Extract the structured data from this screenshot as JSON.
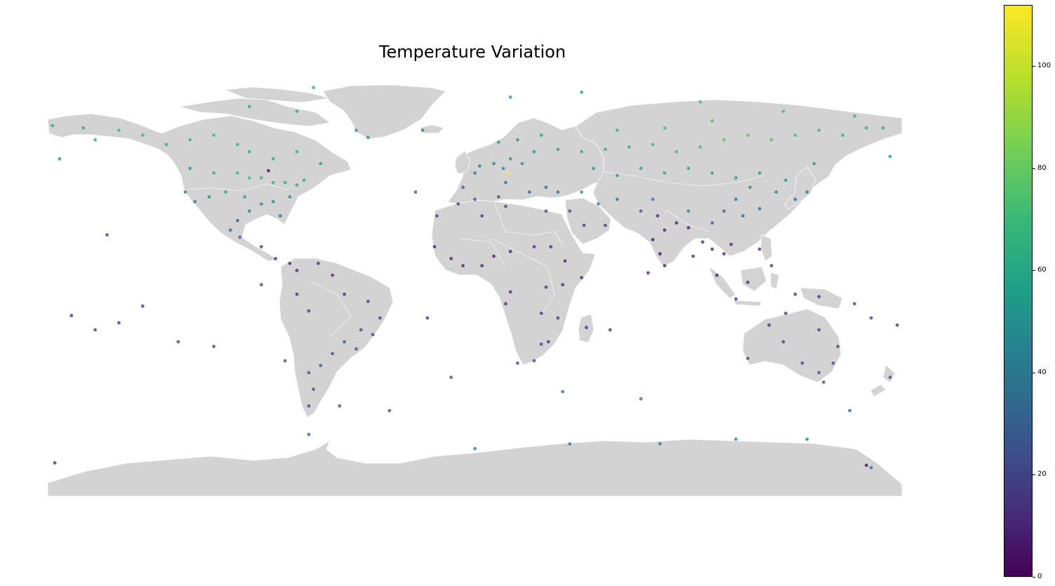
{
  "title": "Temperature Variation",
  "chart_data": {
    "type": "scatter",
    "title": "Temperature Variation",
    "map_projection": "plate carree (longitude/latitude)",
    "colormap": "viridis",
    "color_range": [
      0,
      112
    ],
    "colorbar": {
      "ticks": [
        "0",
        "20",
        "40",
        "60",
        "80",
        "100"
      ],
      "placement": "right"
    },
    "land_color": "#d3d3d3",
    "marker_opacity": 0.75,
    "points": [
      {
        "lon": -150,
        "lat": 64,
        "value": 68
      },
      {
        "lon": -140,
        "lat": 62,
        "value": 66
      },
      {
        "lon": -130,
        "lat": 58,
        "value": 62
      },
      {
        "lon": -120,
        "lat": 60,
        "value": 66
      },
      {
        "lon": -110,
        "lat": 62,
        "value": 68
      },
      {
        "lon": -100,
        "lat": 58,
        "value": 66
      },
      {
        "lon": -95,
        "lat": 55,
        "value": 62
      },
      {
        "lon": -85,
        "lat": 52,
        "value": 60
      },
      {
        "lon": -75,
        "lat": 55,
        "value": 62
      },
      {
        "lon": -65,
        "lat": 50,
        "value": 58
      },
      {
        "lon": -120,
        "lat": 48,
        "value": 52
      },
      {
        "lon": -110,
        "lat": 46,
        "value": 62
      },
      {
        "lon": -100,
        "lat": 46,
        "value": 68
      },
      {
        "lon": -95,
        "lat": 44,
        "value": 70
      },
      {
        "lon": -90,
        "lat": 44,
        "value": 66
      },
      {
        "lon": -85,
        "lat": 42,
        "value": 64
      },
      {
        "lon": -80,
        "lat": 42,
        "value": 62
      },
      {
        "lon": -75,
        "lat": 41,
        "value": 60
      },
      {
        "lon": -72,
        "lat": 43,
        "value": 62
      },
      {
        "lon": -118,
        "lat": 34,
        "value": 38
      },
      {
        "lon": -122,
        "lat": 38,
        "value": 40
      },
      {
        "lon": -112,
        "lat": 36,
        "value": 48
      },
      {
        "lon": -105,
        "lat": 38,
        "value": 56
      },
      {
        "lon": -97,
        "lat": 36,
        "value": 52
      },
      {
        "lon": -95,
        "lat": 30,
        "value": 40
      },
      {
        "lon": -90,
        "lat": 33,
        "value": 44
      },
      {
        "lon": -85,
        "lat": 34,
        "value": 46
      },
      {
        "lon": -82,
        "lat": 28,
        "value": 34
      },
      {
        "lon": -78,
        "lat": 36,
        "value": 48
      },
      {
        "lon": -100,
        "lat": 26,
        "value": 30
      },
      {
        "lon": -103,
        "lat": 22,
        "value": 28
      },
      {
        "lon": -99,
        "lat": 19,
        "value": 30
      },
      {
        "lon": -90,
        "lat": 15,
        "value": 12
      },
      {
        "lon": -84,
        "lat": 10,
        "value": 10
      },
      {
        "lon": -78,
        "lat": 8,
        "value": 10
      },
      {
        "lon": -75,
        "lat": 5,
        "value": 8
      },
      {
        "lon": -66,
        "lat": 8,
        "value": 10
      },
      {
        "lon": -60,
        "lat": 3,
        "value": 8
      },
      {
        "lon": -75,
        "lat": -5,
        "value": 12
      },
      {
        "lon": -70,
        "lat": -12,
        "value": 14
      },
      {
        "lon": -55,
        "lat": -5,
        "value": 12
      },
      {
        "lon": -45,
        "lat": -8,
        "value": 14
      },
      {
        "lon": -40,
        "lat": -15,
        "value": 16
      },
      {
        "lon": -48,
        "lat": -20,
        "value": 22
      },
      {
        "lon": -55,
        "lat": -25,
        "value": 26
      },
      {
        "lon": -60,
        "lat": -30,
        "value": 26
      },
      {
        "lon": -65,
        "lat": -35,
        "value": 28
      },
      {
        "lon": -70,
        "lat": -38,
        "value": 22
      },
      {
        "lon": -68,
        "lat": -45,
        "value": 20
      },
      {
        "lon": -70,
        "lat": -52,
        "value": 18
      },
      {
        "lon": -50,
        "lat": -28,
        "value": 24
      },
      {
        "lon": -43,
        "lat": -22,
        "value": 20
      },
      {
        "lon": -155,
        "lat": 20,
        "value": 14
      },
      {
        "lon": -170,
        "lat": -14,
        "value": 10
      },
      {
        "lon": -150,
        "lat": -17,
        "value": 12
      },
      {
        "lon": -160,
        "lat": -20,
        "value": 14
      },
      {
        "lon": -5,
        "lat": 40,
        "value": 30
      },
      {
        "lon": 0,
        "lat": 46,
        "value": 34
      },
      {
        "lon": 2,
        "lat": 49,
        "value": 40
      },
      {
        "lon": 8,
        "lat": 50,
        "value": 44
      },
      {
        "lon": 12,
        "lat": 48,
        "value": 46
      },
      {
        "lon": 15,
        "lat": 52,
        "value": 48
      },
      {
        "lon": 20,
        "lat": 50,
        "value": 50
      },
      {
        "lon": 25,
        "lat": 55,
        "value": 52
      },
      {
        "lon": 10,
        "lat": 59,
        "value": 52
      },
      {
        "lon": 18,
        "lat": 60,
        "value": 54
      },
      {
        "lon": 28,
        "lat": 62,
        "value": 56
      },
      {
        "lon": 35,
        "lat": 56,
        "value": 58
      },
      {
        "lon": 45,
        "lat": 55,
        "value": 60
      },
      {
        "lon": 55,
        "lat": 56,
        "value": 64
      },
      {
        "lon": 65,
        "lat": 57,
        "value": 66
      },
      {
        "lon": 75,
        "lat": 58,
        "value": 70
      },
      {
        "lon": 85,
        "lat": 55,
        "value": 70
      },
      {
        "lon": 95,
        "lat": 57,
        "value": 72
      },
      {
        "lon": 105,
        "lat": 60,
        "value": 76
      },
      {
        "lon": 115,
        "lat": 62,
        "value": 78
      },
      {
        "lon": 125,
        "lat": 60,
        "value": 74
      },
      {
        "lon": 135,
        "lat": 62,
        "value": 72
      },
      {
        "lon": 145,
        "lat": 64,
        "value": 68
      },
      {
        "lon": 155,
        "lat": 62,
        "value": 64
      },
      {
        "lon": 165,
        "lat": 65,
        "value": 62
      },
      {
        "lon": 80,
        "lat": 65,
        "value": 70
      },
      {
        "lon": 100,
        "lat": 68,
        "value": 74
      },
      {
        "lon": 60,
        "lat": 64,
        "value": 66
      },
      {
        "lon": 50,
        "lat": 48,
        "value": 54
      },
      {
        "lon": 60,
        "lat": 45,
        "value": 52
      },
      {
        "lon": 70,
        "lat": 48,
        "value": 56
      },
      {
        "lon": 80,
        "lat": 46,
        "value": 58
      },
      {
        "lon": 90,
        "lat": 48,
        "value": 60
      },
      {
        "lon": 100,
        "lat": 46,
        "value": 56
      },
      {
        "lon": 110,
        "lat": 44,
        "value": 54
      },
      {
        "lon": 120,
        "lat": 46,
        "value": 52
      },
      {
        "lon": 127,
        "lat": 38,
        "value": 44
      },
      {
        "lon": 135,
        "lat": 35,
        "value": 34
      },
      {
        "lon": 140,
        "lat": 38,
        "value": 38
      },
      {
        "lon": 116,
        "lat": 40,
        "value": 48
      },
      {
        "lon": 110,
        "lat": 35,
        "value": 40
      },
      {
        "lon": 105,
        "lat": 30,
        "value": 32
      },
      {
        "lon": 113,
        "lat": 28,
        "value": 28
      },
      {
        "lon": 120,
        "lat": 31,
        "value": 32
      },
      {
        "lon": 100,
        "lat": 25,
        "value": 24
      },
      {
        "lon": 90,
        "lat": 30,
        "value": 42
      },
      {
        "lon": 75,
        "lat": 35,
        "value": 40
      },
      {
        "lon": 70,
        "lat": 30,
        "value": 28
      },
      {
        "lon": 60,
        "lat": 35,
        "value": 40
      },
      {
        "lon": 52,
        "lat": 33,
        "value": 42
      },
      {
        "lon": 45,
        "lat": 38,
        "value": 44
      },
      {
        "lon": 40,
        "lat": 30,
        "value": 22
      },
      {
        "lon": 35,
        "lat": 38,
        "value": 36
      },
      {
        "lon": 30,
        "lat": 40,
        "value": 34
      },
      {
        "lon": 23,
        "lat": 38,
        "value": 30
      },
      {
        "lon": 13,
        "lat": 42,
        "value": 32
      },
      {
        "lon": 77,
        "lat": 28,
        "value": 10
      },
      {
        "lon": 80,
        "lat": 22,
        "value": 6
      },
      {
        "lon": 75,
        "lat": 18,
        "value": 4
      },
      {
        "lon": 78,
        "lat": 12,
        "value": 2
      },
      {
        "lon": 85,
        "lat": 25,
        "value": 8
      },
      {
        "lon": 90,
        "lat": 23,
        "value": 6
      },
      {
        "lon": 96,
        "lat": 17,
        "value": 8
      },
      {
        "lon": 100,
        "lat": 14,
        "value": 6
      },
      {
        "lon": 105,
        "lat": 12,
        "value": 8
      },
      {
        "lon": 108,
        "lat": 16,
        "value": 10
      },
      {
        "lon": 102,
        "lat": 3,
        "value": 8
      },
      {
        "lon": 110,
        "lat": -7,
        "value": 10
      },
      {
        "lon": 120,
        "lat": 14,
        "value": 8
      },
      {
        "lon": 125,
        "lat": 7,
        "value": 10
      },
      {
        "lon": 115,
        "lat": 0,
        "value": 10
      },
      {
        "lon": 135,
        "lat": -5,
        "value": 12
      },
      {
        "lon": 145,
        "lat": -6,
        "value": 12
      },
      {
        "lon": 160,
        "lat": -9,
        "value": 14
      },
      {
        "lon": 178,
        "lat": -18,
        "value": 12
      },
      {
        "lon": 167,
        "lat": -15,
        "value": 14
      },
      {
        "lon": 115,
        "lat": -32,
        "value": 22
      },
      {
        "lon": 130,
        "lat": -25,
        "value": 18
      },
      {
        "lon": 138,
        "lat": -34,
        "value": 22
      },
      {
        "lon": 145,
        "lat": -38,
        "value": 26
      },
      {
        "lon": 151,
        "lat": -34,
        "value": 24
      },
      {
        "lon": 153,
        "lat": -27,
        "value": 20
      },
      {
        "lon": 145,
        "lat": -20,
        "value": 14
      },
      {
        "lon": 131,
        "lat": -13,
        "value": 10
      },
      {
        "lon": 124,
        "lat": -18,
        "value": 12
      },
      {
        "lon": 147,
        "lat": -42,
        "value": 20
      },
      {
        "lon": 175,
        "lat": -40,
        "value": 22
      },
      {
        "lon": -17,
        "lat": 15,
        "value": 6
      },
      {
        "lon": -10,
        "lat": 10,
        "value": 6
      },
      {
        "lon": -5,
        "lat": 7,
        "value": 6
      },
      {
        "lon": 3,
        "lat": 7,
        "value": 6
      },
      {
        "lon": 8,
        "lat": 11,
        "value": 8
      },
      {
        "lon": 15,
        "lat": 13,
        "value": 8
      },
      {
        "lon": 25,
        "lat": 15,
        "value": 8
      },
      {
        "lon": 32,
        "lat": 15,
        "value": 10
      },
      {
        "lon": 38,
        "lat": 9,
        "value": 8
      },
      {
        "lon": 45,
        "lat": 2,
        "value": 8
      },
      {
        "lon": 37,
        "lat": -1,
        "value": 8
      },
      {
        "lon": 30,
        "lat": -2,
        "value": 10
      },
      {
        "lon": 15,
        "lat": -4,
        "value": 10
      },
      {
        "lon": 13,
        "lat": -9,
        "value": 12
      },
      {
        "lon": 28,
        "lat": -13,
        "value": 12
      },
      {
        "lon": 35,
        "lat": -15,
        "value": 12
      },
      {
        "lon": 31,
        "lat": -25,
        "value": 14
      },
      {
        "lon": 28,
        "lat": -26,
        "value": 18
      },
      {
        "lon": 18,
        "lat": -34,
        "value": 20
      },
      {
        "lon": 25,
        "lat": -33,
        "value": 18
      },
      {
        "lon": 47,
        "lat": -19,
        "value": 12
      },
      {
        "lon": 57,
        "lat": -20,
        "value": 12
      },
      {
        "lon": 0,
        "lat": 35,
        "value": 24
      },
      {
        "lon": 10,
        "lat": 36,
        "value": 24
      },
      {
        "lon": -7,
        "lat": 33,
        "value": 20
      },
      {
        "lon": 3,
        "lat": 28,
        "value": 16
      },
      {
        "lon": 30,
        "lat": 30,
        "value": 16
      },
      {
        "lon": 13,
        "lat": 32,
        "value": 18
      },
      {
        "lon": 46,
        "lat": 24,
        "value": 14
      },
      {
        "lon": 55,
        "lat": 24,
        "value": 12
      },
      {
        "lon": -16,
        "lat": 28,
        "value": 16
      },
      {
        "lon": -25,
        "lat": 38,
        "value": 24
      },
      {
        "lon": -22,
        "lat": 64,
        "value": 42
      },
      {
        "lon": -50,
        "lat": 64,
        "value": 52
      },
      {
        "lon": -45,
        "lat": 61,
        "value": 50
      },
      {
        "lon": -68,
        "lat": 82,
        "value": 60
      },
      {
        "lon": -75,
        "lat": 72,
        "value": 60
      },
      {
        "lon": -95,
        "lat": 74,
        "value": 62
      },
      {
        "lon": 15,
        "lat": 78,
        "value": 48
      },
      {
        "lon": 45,
        "lat": 80,
        "value": 58
      },
      {
        "lon": 95,
        "lat": 76,
        "value": 70
      },
      {
        "lon": 130,
        "lat": 72,
        "value": 72
      },
      {
        "lon": 160,
        "lat": 70,
        "value": 64
      },
      {
        "lon": 172,
        "lat": 65,
        "value": 60
      },
      {
        "lon": 175,
        "lat": 53,
        "value": 50
      },
      {
        "lon": 143,
        "lat": 50,
        "value": 48
      },
      {
        "lon": 131,
        "lat": 43,
        "value": 50
      },
      {
        "lon": -175,
        "lat": 52,
        "value": 48
      },
      {
        "lon": -178,
        "lat": 66,
        "value": 60
      },
      {
        "lon": -160,
        "lat": 60,
        "value": 60
      },
      {
        "lon": -165,
        "lat": 65,
        "value": 62
      },
      {
        "lon": -70,
        "lat": -64,
        "value": 30
      },
      {
        "lon": 0,
        "lat": -70,
        "value": 34
      },
      {
        "lon": 40,
        "lat": -68,
        "value": 36
      },
      {
        "lon": 78,
        "lat": -68,
        "value": 38
      },
      {
        "lon": 110,
        "lat": -66,
        "value": 38
      },
      {
        "lon": 140,
        "lat": -66,
        "value": 36
      },
      {
        "lon": 165,
        "lat": -77,
        "value": 2
      },
      {
        "lon": 167,
        "lat": -78,
        "value": 34
      },
      {
        "lon": -57,
        "lat": -52,
        "value": 18
      },
      {
        "lon": -36,
        "lat": -54,
        "value": 18
      },
      {
        "lon": -10,
        "lat": -40,
        "value": 24
      },
      {
        "lon": 37,
        "lat": -46,
        "value": 26
      },
      {
        "lon": 70,
        "lat": -49,
        "value": 30
      },
      {
        "lon": 158,
        "lat": -54,
        "value": 26
      },
      {
        "lon": -177,
        "lat": -76,
        "value": 10
      },
      {
        "lon": -20,
        "lat": -15,
        "value": 12
      },
      {
        "lon": -80,
        "lat": -33,
        "value": 20
      },
      {
        "lon": -90,
        "lat": -1,
        "value": 14
      },
      {
        "lon": -140,
        "lat": -10,
        "value": 12
      },
      {
        "lon": -125,
        "lat": -25,
        "value": 14
      },
      {
        "lon": -110,
        "lat": -27,
        "value": 14
      },
      {
        "lon": 73,
        "lat": 4,
        "value": 8
      },
      {
        "lon": 80,
        "lat": 7,
        "value": 6
      },
      {
        "lon": 92,
        "lat": 11,
        "value": 8
      },
      {
        "lon": 14,
        "lat": 46,
        "value": 112
      },
      {
        "lon": -87,
        "lat": 47,
        "value": 1
      }
    ]
  }
}
